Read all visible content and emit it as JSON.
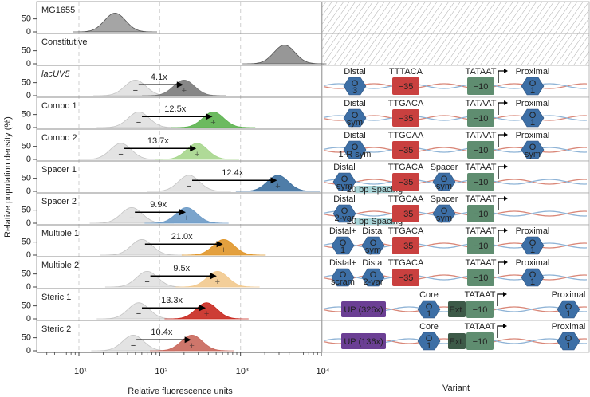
{
  "chart_data": {
    "type": "ridgeline",
    "xlabel": "Relative fluorescence units",
    "ylabel": "Relative population density (%)",
    "panel_label": "Variant",
    "xlim": [
      3,
      10000
    ],
    "xticks": [
      {
        "value": 10,
        "label": "10¹"
      },
      {
        "value": 100,
        "label": "10²"
      },
      {
        "value": 1000,
        "label": "10³"
      },
      {
        "value": 10000,
        "label": "10⁴"
      }
    ],
    "log_x": true,
    "ylim": [
      0,
      110
    ],
    "yticks": [
      0,
      50
    ],
    "grid": true,
    "categories": [
      "MG1655",
      "Constitutive",
      "lacUV5",
      "Combo 1",
      "Combo 2",
      "Spacer 1",
      "Spacer 2",
      "Multiple 1",
      "Multiple 2",
      "Steric 1",
      "Steric 2"
    ],
    "colors": [
      "#9b9b9b",
      "#8c8c8c",
      "#7a7a7a",
      "#5cb34f",
      "#a6d68c",
      "#3c6f9f",
      "#6c9ac6",
      "#e0962a",
      "#f2c98e",
      "#c8281f",
      "#c9675b"
    ],
    "reference_values": [
      null,
      null,
      50,
      55,
      33,
      230,
      45,
      60,
      70,
      55,
      47
    ],
    "values": [
      28,
      3500,
      200,
      460,
      290,
      2900,
      215,
      620,
      520,
      380,
      250
    ],
    "peaks": [
      72,
      72,
      60,
      60,
      62,
      62,
      60,
      60,
      60,
      62,
      60
    ],
    "fold_changes": [
      null,
      null,
      4.1,
      12.5,
      13.7,
      12.4,
      9.9,
      21.0,
      9.5,
      13.3,
      10.4
    ],
    "fold_labels": [
      null,
      null,
      "4.1x",
      "12.5x",
      "13.7x",
      "12.4x",
      "9.9x",
      "21.0x",
      "9.5x",
      "13.3x",
      "10.4x"
    ],
    "variants": [
      [
        {
          "kind": "operator",
          "label": "O",
          "sub": "3",
          "caption": "Distal"
        },
        {
          "kind": "minus35",
          "label": "−35",
          "caption": "TTTACA"
        },
        {
          "kind": "minus10",
          "label": "−10",
          "caption": "TATAAT"
        },
        {
          "kind": "operator",
          "label": "O",
          "sub": "1",
          "caption": "Proximal"
        }
      ],
      [
        {
          "kind": "operator",
          "label": "O",
          "sub": "sym",
          "caption": "Distal"
        },
        {
          "kind": "minus35",
          "label": "−35",
          "caption": "TTGACA"
        },
        {
          "kind": "minus10",
          "label": "−10",
          "caption": "TATAAT"
        },
        {
          "kind": "operator",
          "label": "O",
          "sub": "1",
          "caption": "Proximal"
        }
      ],
      [
        {
          "kind": "operator",
          "label": "O",
          "sub": "1-R sym",
          "caption": "Distal"
        },
        {
          "kind": "minus35",
          "label": "−35",
          "caption": "TTGCAA"
        },
        {
          "kind": "minus10",
          "label": "−10",
          "caption": "TATAAT"
        },
        {
          "kind": "operator",
          "label": "O",
          "sub": "sym",
          "caption": "Proximal"
        }
      ],
      [
        {
          "kind": "operator",
          "label": "O",
          "sub": "sym",
          "caption": "Distal"
        },
        {
          "kind": "spacing",
          "label": "20 bp Spacing"
        },
        {
          "kind": "minus35",
          "label": "−35",
          "caption": "TTGACA"
        },
        {
          "kind": "operator",
          "label": "O",
          "sub": "sym",
          "caption": "Spacer"
        },
        {
          "kind": "minus10",
          "label": "−10",
          "caption": "TATAAT"
        }
      ],
      [
        {
          "kind": "operator",
          "label": "O",
          "sub": "2-var",
          "caption": "Distal"
        },
        {
          "kind": "spacing",
          "label": "20 bp Spacing"
        },
        {
          "kind": "minus35",
          "label": "−35",
          "caption": "TTGCAA"
        },
        {
          "kind": "operator",
          "label": "O",
          "sub": "sym",
          "caption": "Spacer"
        },
        {
          "kind": "minus10",
          "label": "−10",
          "caption": "TATAAT"
        }
      ],
      [
        {
          "kind": "operator",
          "label": "O",
          "sub": "1",
          "caption": "Distal+"
        },
        {
          "kind": "operator",
          "label": "O",
          "sub": "sym",
          "caption": "Distal"
        },
        {
          "kind": "minus35",
          "label": "−35",
          "caption": "TTGACA"
        },
        {
          "kind": "minus10",
          "label": "−10",
          "caption": "TATAAT"
        },
        {
          "kind": "operator",
          "label": "O",
          "sub": "1",
          "caption": "Proximal"
        }
      ],
      [
        {
          "kind": "operator",
          "label": "O",
          "sub": "scram",
          "caption": "Distal+"
        },
        {
          "kind": "operator",
          "label": "O",
          "sub": "2-var",
          "caption": "Distal"
        },
        {
          "kind": "minus35",
          "label": "−35",
          "caption": "TTGACA"
        },
        {
          "kind": "minus10",
          "label": "−10",
          "caption": "TATAAT"
        },
        {
          "kind": "operator",
          "label": "O",
          "sub": "1",
          "caption": "Proximal"
        }
      ],
      [
        {
          "kind": "up",
          "label": "UP (326x)"
        },
        {
          "kind": "operator",
          "label": "O",
          "sub": "1",
          "caption": "Core"
        },
        {
          "kind": "ext",
          "label": "Ext."
        },
        {
          "kind": "minus10",
          "label": "−10",
          "caption": "TATAAT"
        },
        {
          "kind": "operator",
          "label": "O",
          "sub": "1",
          "caption": "Proximal"
        }
      ],
      [
        {
          "kind": "up",
          "label": "UP (136x)"
        },
        {
          "kind": "operator",
          "label": "O",
          "sub": "1",
          "caption": "Core"
        },
        {
          "kind": "ext",
          "label": "Ext."
        },
        {
          "kind": "minus10",
          "label": "−10",
          "caption": "TATAAT"
        },
        {
          "kind": "operator",
          "label": "O",
          "sub": "1",
          "caption": "Proximal"
        }
      ]
    ]
  }
}
